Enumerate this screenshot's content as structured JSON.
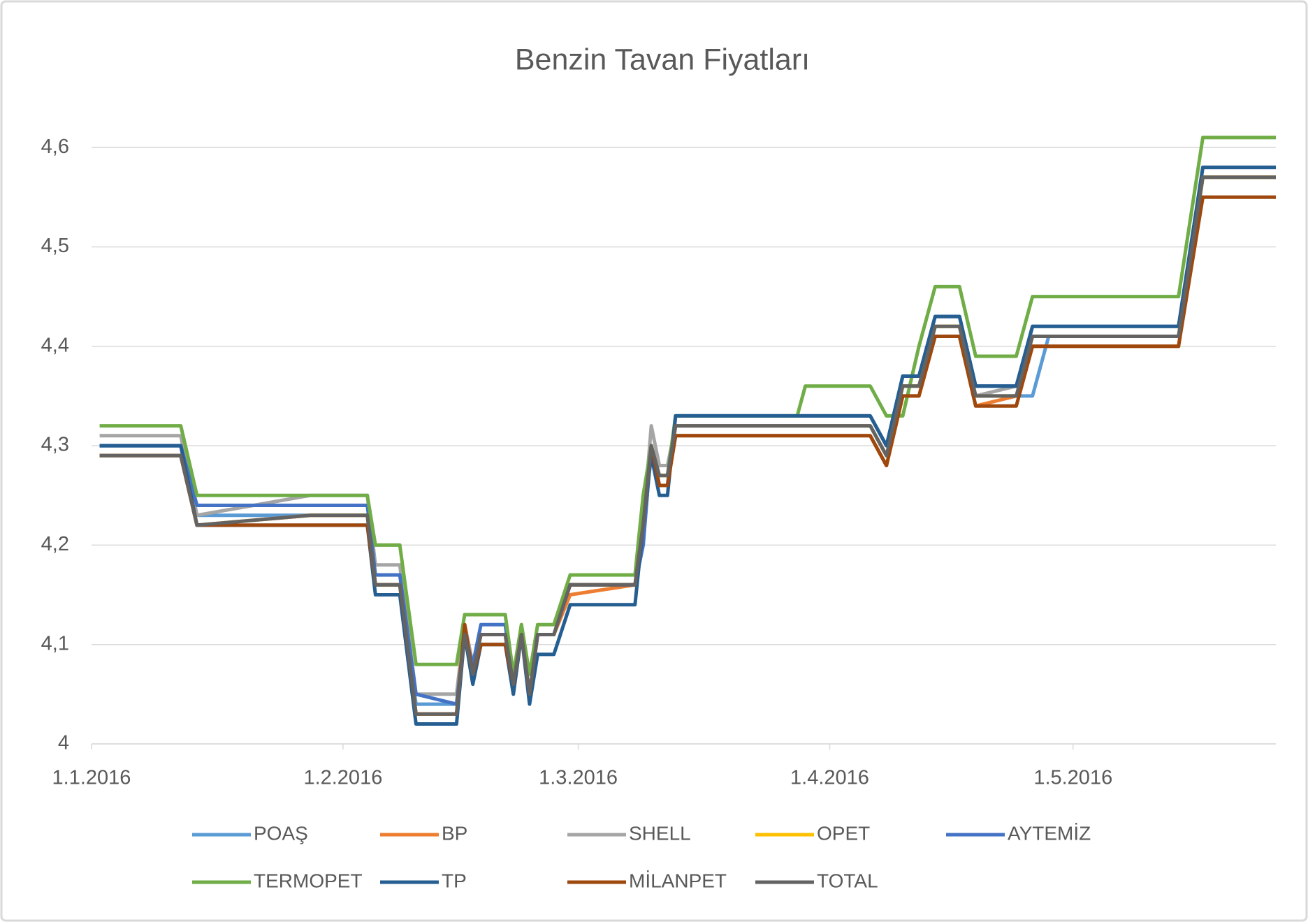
{
  "chart_data": {
    "type": "line",
    "title": "Benzin Tavan  Fiyatları",
    "x": [
      "2.1.2016",
      "12.1.2016",
      "14.1.2016",
      "28.1.2016",
      "4.2.2016",
      "5.2.2016",
      "8.2.2016",
      "10.2.2016",
      "15.2.2016",
      "16.2.2016",
      "17.2.2016",
      "18.2.2016",
      "21.2.2016",
      "22.2.2016",
      "23.2.2016",
      "24.2.2016",
      "25.2.2016",
      "27.2.2016",
      "29.2.2016",
      "8.3.2016",
      "9.3.2016",
      "10.3.2016",
      "11.3.2016",
      "12.3.2016",
      "13.3.2016",
      "28.3.2016",
      "29.3.2016",
      "6.4.2016",
      "8.4.2016",
      "10.4.2016",
      "12.4.2016",
      "14.4.2016",
      "17.4.2016",
      "19.4.2016",
      "24.4.2016",
      "26.4.2016",
      "28.4.2016",
      "14.5.2016",
      "17.5.2016",
      "26.5.2016"
    ],
    "xlim": [
      "1.1.2016",
      "26.5.2016"
    ],
    "xticks": [
      "1.1.2016",
      "1.2.2016",
      "1.3.2016",
      "1.4.2016",
      "1.5.2016"
    ],
    "ylim": [
      4,
      4.65
    ],
    "yticks": [
      4,
      {
        "value": 4.1,
        "label": "4,1"
      },
      {
        "value": 4.2,
        "label": "4,2"
      },
      {
        "value": 4.3,
        "label": "4,3"
      },
      {
        "value": 4.4,
        "label": "4,4"
      },
      {
        "value": 4.5,
        "label": "4,5"
      },
      {
        "value": 4.6,
        "label": "4,6"
      }
    ],
    "grid": true,
    "legend": "bottom",
    "series": [
      {
        "name": "POAŞ",
        "color": "#5b9bd5",
        "values": [
          4.3,
          4.3,
          4.23,
          4.23,
          4.23,
          4.16,
          4.16,
          4.04,
          4.04,
          4.12,
          4.08,
          4.11,
          4.11,
          4.06,
          4.11,
          4.05,
          4.11,
          4.11,
          4.16,
          4.16,
          4.2,
          4.3,
          4.26,
          4.26,
          4.32,
          4.32,
          4.32,
          4.32,
          4.29,
          4.36,
          4.36,
          4.42,
          4.42,
          4.35,
          4.35,
          4.35,
          4.41,
          4.41,
          4.57,
          4.57
        ]
      },
      {
        "name": "BP",
        "color": "#ed7d31",
        "values": [
          4.29,
          4.29,
          4.22,
          4.23,
          4.23,
          4.16,
          4.16,
          4.03,
          4.03,
          4.12,
          4.08,
          4.11,
          4.11,
          4.05,
          4.11,
          4.05,
          4.11,
          4.11,
          4.15,
          4.16,
          4.21,
          4.3,
          4.26,
          4.26,
          4.31,
          4.31,
          4.31,
          4.31,
          4.28,
          4.35,
          4.35,
          4.41,
          4.41,
          4.34,
          4.35,
          4.4,
          4.4,
          4.4,
          4.57,
          4.57
        ]
      },
      {
        "name": "SHELL",
        "color": "#a5a5a5",
        "values": [
          4.31,
          4.31,
          4.23,
          4.25,
          4.25,
          4.18,
          4.18,
          4.05,
          4.05,
          4.12,
          4.08,
          4.11,
          4.11,
          4.06,
          4.12,
          4.05,
          4.11,
          4.11,
          4.16,
          4.16,
          4.22,
          4.32,
          4.28,
          4.28,
          4.32,
          4.32,
          4.32,
          4.32,
          4.29,
          4.36,
          4.36,
          4.42,
          4.42,
          4.35,
          4.36,
          4.41,
          4.41,
          4.41,
          4.57,
          4.57
        ]
      },
      {
        "name": "OPET",
        "color": "#ffc000",
        "values": [
          4.29,
          4.29,
          4.22,
          4.23,
          4.23,
          4.16,
          4.16,
          4.03,
          4.03,
          4.11,
          4.07,
          4.11,
          4.11,
          4.06,
          4.11,
          4.05,
          4.11,
          4.11,
          4.16,
          4.16,
          4.22,
          4.3,
          4.27,
          4.27,
          4.32,
          4.32,
          4.32,
          4.32,
          4.29,
          4.36,
          4.36,
          4.42,
          4.42,
          4.35,
          4.35,
          4.41,
          4.41,
          4.41,
          4.57,
          4.57
        ]
      },
      {
        "name": "AYTEMİZ",
        "color": "#4472c4",
        "values": [
          4.3,
          4.3,
          4.24,
          4.24,
          4.24,
          4.17,
          4.17,
          4.05,
          4.04,
          4.11,
          4.08,
          4.12,
          4.12,
          4.06,
          4.11,
          4.05,
          4.11,
          4.11,
          4.16,
          4.16,
          4.2,
          4.3,
          4.26,
          4.26,
          4.33,
          4.33,
          4.33,
          4.33,
          4.3,
          4.37,
          4.37,
          4.43,
          4.43,
          4.36,
          4.36,
          4.42,
          4.42,
          4.42,
          4.58,
          4.58
        ]
      },
      {
        "name": "TERMOPET",
        "color": "#70ad47",
        "values": [
          4.32,
          4.32,
          4.25,
          4.25,
          4.25,
          4.2,
          4.2,
          4.08,
          4.08,
          4.13,
          4.13,
          4.13,
          4.13,
          4.07,
          4.12,
          4.07,
          4.12,
          4.12,
          4.17,
          4.17,
          4.25,
          4.3,
          4.27,
          4.27,
          4.33,
          4.33,
          4.36,
          4.36,
          4.33,
          4.33,
          4.4,
          4.46,
          4.46,
          4.39,
          4.39,
          4.45,
          4.45,
          4.45,
          4.61,
          4.61
        ]
      },
      {
        "name": "TP",
        "color": "#255e91",
        "values": [
          4.3,
          4.3,
          4.22,
          4.22,
          4.22,
          4.15,
          4.15,
          4.02,
          4.02,
          4.11,
          4.06,
          4.1,
          4.1,
          4.05,
          4.11,
          4.04,
          4.09,
          4.09,
          4.14,
          4.14,
          4.22,
          4.29,
          4.25,
          4.25,
          4.33,
          4.33,
          4.33,
          4.33,
          4.3,
          4.37,
          4.37,
          4.43,
          4.43,
          4.36,
          4.36,
          4.42,
          4.42,
          4.42,
          4.58,
          4.58
        ]
      },
      {
        "name": "MİLANPET",
        "color": "#9e480e",
        "values": [
          4.29,
          4.29,
          4.22,
          4.22,
          4.22,
          4.16,
          4.16,
          4.03,
          4.03,
          4.12,
          4.07,
          4.1,
          4.1,
          4.06,
          4.11,
          4.05,
          4.11,
          4.11,
          4.16,
          4.16,
          4.22,
          4.3,
          4.26,
          4.26,
          4.31,
          4.31,
          4.31,
          4.31,
          4.28,
          4.35,
          4.35,
          4.41,
          4.41,
          4.34,
          4.34,
          4.4,
          4.4,
          4.4,
          4.55,
          4.55
        ]
      },
      {
        "name": "TOTAL",
        "color": "#636363",
        "values": [
          4.29,
          4.29,
          4.22,
          4.23,
          4.23,
          4.16,
          4.16,
          4.03,
          4.03,
          4.11,
          4.07,
          4.11,
          4.11,
          4.06,
          4.11,
          4.05,
          4.11,
          4.11,
          4.16,
          4.16,
          4.22,
          4.3,
          4.27,
          4.27,
          4.32,
          4.32,
          4.32,
          4.32,
          4.29,
          4.36,
          4.36,
          4.42,
          4.42,
          4.35,
          4.35,
          4.41,
          4.41,
          4.41,
          4.57,
          4.57
        ]
      }
    ]
  }
}
